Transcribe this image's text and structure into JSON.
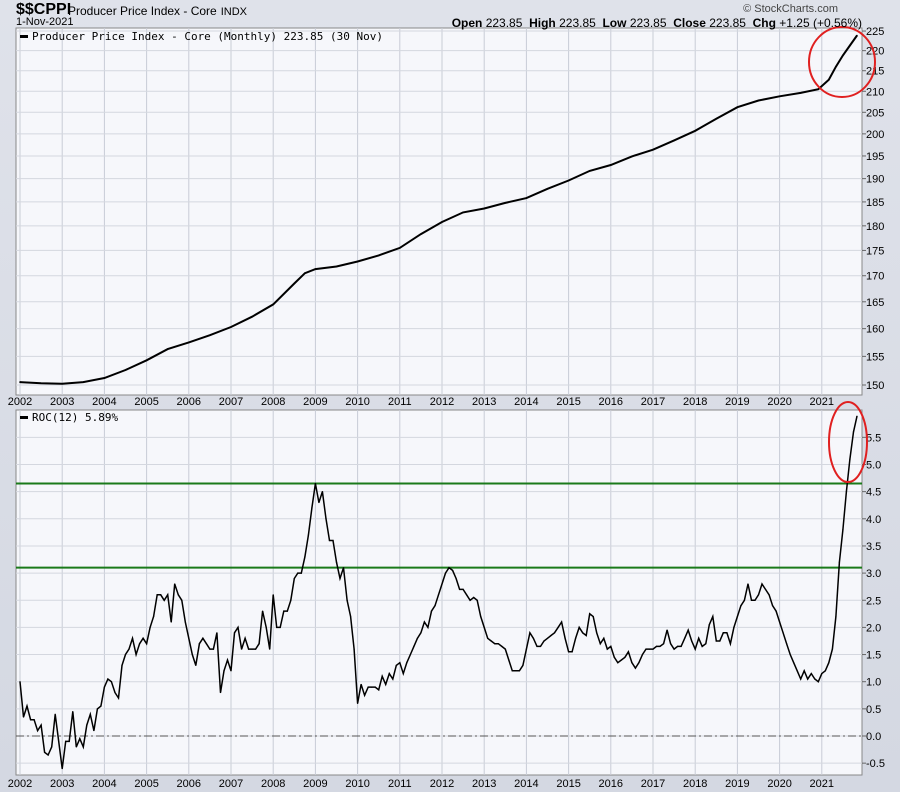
{
  "header": {
    "symbol": "$$CPPI",
    "name": "Producer Price Index - Core",
    "exchange": "INDX",
    "date": "1-Nov-2021",
    "watermark": "© StockCharts.com",
    "ohlc": {
      "open_label": "Open",
      "open": "223.85",
      "high_label": "High",
      "high": "223.85",
      "low_label": "Low",
      "low": "223.85",
      "close_label": "Close",
      "close": "223.85",
      "chg_label": "Chg",
      "chg": "+1.25 (+0.56%)"
    }
  },
  "chart_data": [
    {
      "type": "line",
      "legend": "Producer Price Index - Core (Monthly) 223.85 (30 Nov)",
      "y_scale": "log",
      "ylim": [
        148,
        226
      ],
      "y_ticks": [
        150,
        155,
        160,
        165,
        170,
        175,
        180,
        185,
        190,
        195,
        200,
        205,
        210,
        215,
        220,
        225
      ],
      "x_ticks": [
        "2002",
        "2003",
        "2004",
        "2005",
        "2006",
        "2007",
        "2008",
        "2009",
        "2010",
        "2011",
        "2012",
        "2013",
        "2014",
        "2015",
        "2016",
        "2017",
        "2018",
        "2019",
        "2020",
        "2021"
      ],
      "grid": true,
      "line_color": "#000000",
      "annotation": {
        "shape": "ellipse",
        "color": "#e02020",
        "around": "2021 rise"
      },
      "points": [
        [
          "2002-01",
          150.5
        ],
        [
          "2002-07",
          150.3
        ],
        [
          "2003-01",
          150.2
        ],
        [
          "2003-07",
          150.5
        ],
        [
          "2004-01",
          151.2
        ],
        [
          "2004-07",
          152.6
        ],
        [
          "2005-01",
          154.3
        ],
        [
          "2005-07",
          156.3
        ],
        [
          "2006-01",
          157.5
        ],
        [
          "2006-07",
          158.8
        ],
        [
          "2007-01",
          160.3
        ],
        [
          "2007-07",
          162.2
        ],
        [
          "2008-01",
          164.5
        ],
        [
          "2008-07",
          168.5
        ],
        [
          "2008-10",
          170.5
        ],
        [
          "2009-01",
          171.3
        ],
        [
          "2009-07",
          171.8
        ],
        [
          "2010-01",
          172.8
        ],
        [
          "2010-07",
          174.0
        ],
        [
          "2011-01",
          175.5
        ],
        [
          "2011-07",
          178.3
        ],
        [
          "2012-01",
          180.8
        ],
        [
          "2012-07",
          182.8
        ],
        [
          "2013-01",
          183.6
        ],
        [
          "2013-07",
          184.8
        ],
        [
          "2014-01",
          185.8
        ],
        [
          "2014-07",
          187.8
        ],
        [
          "2015-01",
          189.6
        ],
        [
          "2015-07",
          191.7
        ],
        [
          "2016-01",
          193.0
        ],
        [
          "2016-07",
          194.9
        ],
        [
          "2017-01",
          196.4
        ],
        [
          "2017-07",
          198.5
        ],
        [
          "2018-01",
          200.7
        ],
        [
          "2018-07",
          203.5
        ],
        [
          "2019-01",
          206.2
        ],
        [
          "2019-07",
          207.8
        ],
        [
          "2020-01",
          208.8
        ],
        [
          "2020-07",
          209.6
        ],
        [
          "2020-12",
          210.5
        ],
        [
          "2021-03",
          212.8
        ],
        [
          "2021-05",
          216.0
        ],
        [
          "2021-07",
          218.8
        ],
        [
          "2021-09",
          221.3
        ],
        [
          "2021-11",
          223.85
        ]
      ]
    },
    {
      "type": "line",
      "legend": "ROC(12) 5.89%",
      "ylim": [
        -0.75,
        6.2
      ],
      "y_ticks": [
        -0.5,
        0.0,
        0.5,
        1.0,
        1.5,
        2.0,
        2.5,
        3.0,
        3.5,
        4.0,
        4.5,
        5.0,
        5.5
      ],
      "x_ticks": [
        "2002",
        "2003",
        "2004",
        "2005",
        "2006",
        "2007",
        "2008",
        "2009",
        "2010",
        "2011",
        "2012",
        "2013",
        "2014",
        "2015",
        "2016",
        "2017",
        "2018",
        "2019",
        "2020",
        "2021"
      ],
      "grid": true,
      "line_color": "#000000",
      "start": "2002-01",
      "frequency": "monthly",
      "horizontal_lines": [
        {
          "value": 4.65,
          "color": "#1a7a1a"
        },
        {
          "value": 3.1,
          "color": "#1a7a1a"
        }
      ],
      "zero_line": {
        "value": 0,
        "style": "dash-dot"
      },
      "annotation": {
        "shape": "ellipse",
        "color": "#e02020",
        "around": "2021 spike"
      },
      "values": [
        1.0,
        0.35,
        0.55,
        0.3,
        0.3,
        0.1,
        0.2,
        -0.3,
        -0.35,
        -0.2,
        0.4,
        -0.1,
        -0.6,
        -0.1,
        -0.1,
        0.45,
        -0.2,
        -0.05,
        -0.2,
        0.2,
        0.4,
        0.1,
        0.5,
        0.55,
        0.9,
        1.05,
        1.0,
        0.8,
        0.7,
        1.3,
        1.5,
        1.6,
        1.8,
        1.5,
        1.7,
        1.8,
        1.7,
        2.0,
        2.2,
        2.6,
        2.6,
        2.5,
        2.6,
        2.1,
        2.8,
        2.6,
        2.5,
        2.1,
        1.8,
        1.5,
        1.3,
        1.7,
        1.8,
        1.7,
        1.6,
        1.6,
        1.9,
        0.8,
        1.2,
        1.4,
        1.2,
        1.9,
        2.0,
        1.6,
        1.8,
        1.6,
        1.6,
        1.6,
        1.7,
        2.3,
        2.0,
        1.6,
        2.6,
        2.0,
        2.0,
        2.3,
        2.3,
        2.5,
        2.9,
        3.0,
        3.0,
        3.3,
        3.7,
        4.2,
        4.65,
        4.3,
        4.5,
        4.0,
        3.6,
        3.6,
        3.2,
        2.9,
        3.1,
        2.5,
        2.2,
        1.6,
        0.6,
        0.95,
        0.75,
        0.9,
        0.9,
        0.9,
        0.85,
        1.1,
        0.95,
        1.15,
        1.05,
        1.3,
        1.35,
        1.15,
        1.35,
        1.5,
        1.65,
        1.8,
        1.9,
        2.1,
        2.0,
        2.3,
        2.4,
        2.6,
        2.8,
        3.0,
        3.1,
        3.05,
        2.9,
        2.7,
        2.7,
        2.6,
        2.5,
        2.55,
        2.5,
        2.2,
        2.0,
        1.8,
        1.75,
        1.7,
        1.7,
        1.65,
        1.6,
        1.4,
        1.2,
        1.2,
        1.2,
        1.3,
        1.6,
        1.9,
        1.8,
        1.65,
        1.65,
        1.75,
        1.8,
        1.85,
        1.9,
        2.0,
        2.1,
        1.8,
        1.55,
        1.55,
        1.8,
        2.0,
        1.9,
        1.85,
        2.25,
        2.2,
        1.9,
        1.7,
        1.8,
        1.6,
        1.65,
        1.45,
        1.35,
        1.4,
        1.45,
        1.55,
        1.35,
        1.25,
        1.35,
        1.5,
        1.6,
        1.6,
        1.6,
        1.65,
        1.65,
        1.7,
        1.95,
        1.7,
        1.6,
        1.65,
        1.65,
        1.8,
        1.95,
        1.75,
        1.6,
        1.8,
        1.65,
        1.7,
        2.05,
        2.2,
        1.75,
        1.75,
        1.9,
        1.9,
        1.7,
        2.0,
        2.2,
        2.4,
        2.5,
        2.8,
        2.5,
        2.5,
        2.6,
        2.8,
        2.7,
        2.6,
        2.4,
        2.3,
        2.1,
        1.9,
        1.7,
        1.5,
        1.35,
        1.2,
        1.05,
        1.2,
        1.05,
        1.15,
        1.05,
        1.0,
        1.15,
        1.2,
        1.35,
        1.6,
        2.2,
        3.2,
        3.8,
        4.5,
        5.1,
        5.6,
        5.89
      ]
    }
  ]
}
